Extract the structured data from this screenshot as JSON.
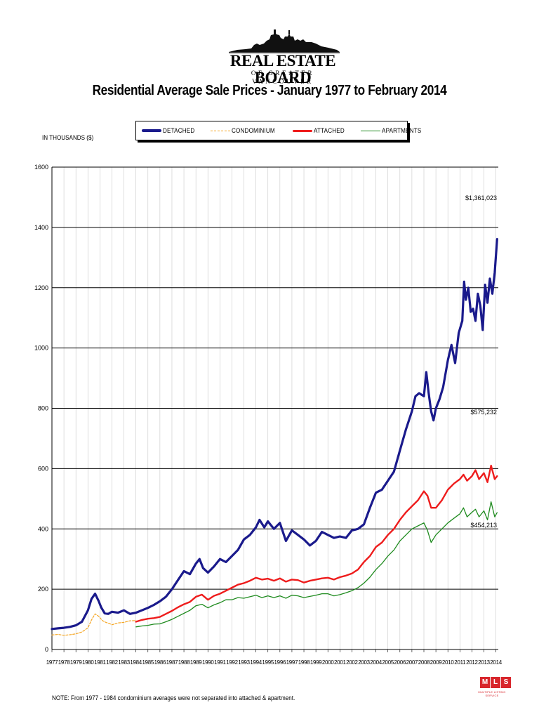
{
  "header": {
    "org_name": "REAL ESTATE BOARD",
    "org_sub": "OF GREATER VANCOUVER",
    "title": "Residential Average Sale Prices  - January 1977 to February 2014",
    "y_unit": "IN THOUSANDS ($)"
  },
  "legend": [
    {
      "label": "DETACHED",
      "color": "#1a1a8c",
      "style": "solid-thick"
    },
    {
      "label": "CONDOMINIUM",
      "color": "#f5a623",
      "style": "dotted"
    },
    {
      "label": "ATTACHED",
      "color": "#ee1c1c",
      "style": "solid"
    },
    {
      "label": "APARTMENTS",
      "color": "#1f8b1f",
      "style": "solid-thin"
    }
  ],
  "footer": {
    "note": "NOTE:  From 1977 - 1984 condominium averages were not separated into attached & apartment.",
    "mls_letters": [
      "M",
      "L",
      "S"
    ],
    "mls_sub": "MULTIPLE LISTING SERVICE"
  },
  "chart_data": {
    "type": "line",
    "title": "Residential Average Sale Prices  - January 1977 to February 2014",
    "ylabel": "IN THOUSANDS ($)",
    "xlabel": "",
    "ylim": [
      0,
      1600
    ],
    "yticks": [
      0,
      200,
      400,
      600,
      800,
      1000,
      1200,
      1400,
      1600
    ],
    "xlim": [
      1977.0,
      2014.2
    ],
    "xticks": [
      "1977",
      "1978",
      "1979",
      "1980",
      "1981",
      "1982",
      "1983",
      "1984",
      "1985",
      "1986",
      "1987",
      "1988",
      "1989",
      "1990",
      "1991",
      "1992",
      "1993",
      "1994",
      "1995",
      "1996",
      "1997",
      "1998",
      "1999",
      "2000",
      "2001",
      "2002",
      "2003",
      "2004",
      "2005",
      "2006",
      "2007",
      "2008",
      "2009",
      "2010",
      "2011",
      "2012",
      "2013",
      "2014"
    ],
    "grid": "horizontal-major-and-vertical-minor",
    "annotations": [
      {
        "text": "$1,361,023",
        "x": 2013.8,
        "y": 1490
      },
      {
        "text": "$575,232",
        "x": 2013.8,
        "y": 780
      },
      {
        "text": "$454,213",
        "x": 2013.8,
        "y": 405
      }
    ],
    "series": [
      {
        "name": "DETACHED",
        "color": "#1a1a8c",
        "width": 3.2,
        "x": [
          1977.0,
          1977.5,
          1978.0,
          1978.5,
          1979.0,
          1979.5,
          1980.0,
          1980.3,
          1980.6,
          1980.9,
          1981.1,
          1981.4,
          1981.7,
          1982.0,
          1982.5,
          1983.0,
          1983.5,
          1984.0,
          1984.5,
          1985.0,
          1985.5,
          1986.0,
          1986.5,
          1987.0,
          1987.5,
          1988.0,
          1988.5,
          1989.0,
          1989.3,
          1989.6,
          1990.0,
          1990.5,
          1991.0,
          1991.5,
          1992.0,
          1992.5,
          1993.0,
          1993.5,
          1994.0,
          1994.3,
          1994.7,
          1995.0,
          1995.5,
          1996.0,
          1996.5,
          1997.0,
          1997.5,
          1998.0,
          1998.5,
          1999.0,
          1999.5,
          2000.0,
          2000.5,
          2001.0,
          2001.5,
          2002.0,
          2002.5,
          2003.0,
          2003.5,
          2004.0,
          2004.5,
          2005.0,
          2005.5,
          2006.0,
          2006.5,
          2007.0,
          2007.3,
          2007.6,
          2008.0,
          2008.2,
          2008.4,
          2008.6,
          2008.8,
          2009.0,
          2009.3,
          2009.6,
          2010.0,
          2010.3,
          2010.6,
          2010.9,
          2011.2,
          2011.35,
          2011.5,
          2011.7,
          2011.9,
          2012.1,
          2012.3,
          2012.5,
          2012.7,
          2012.9,
          2013.1,
          2013.3,
          2013.5,
          2013.7,
          2013.9,
          2014.1
        ],
        "y": [
          68,
          70,
          72,
          75,
          80,
          92,
          130,
          168,
          185,
          160,
          140,
          120,
          118,
          125,
          122,
          130,
          118,
          122,
          130,
          138,
          148,
          160,
          175,
          200,
          230,
          260,
          250,
          285,
          300,
          270,
          255,
          275,
          300,
          290,
          310,
          330,
          365,
          380,
          405,
          430,
          405,
          425,
          400,
          420,
          360,
          395,
          380,
          365,
          345,
          360,
          390,
          380,
          370,
          375,
          370,
          395,
          400,
          415,
          470,
          520,
          530,
          560,
          590,
          660,
          730,
          790,
          840,
          850,
          840,
          920,
          850,
          790,
          760,
          800,
          830,
          870,
          960,
          1010,
          950,
          1050,
          1090,
          1220,
          1160,
          1200,
          1120,
          1130,
          1090,
          1180,
          1140,
          1060,
          1210,
          1150,
          1230,
          1180,
          1250,
          1361
        ]
      },
      {
        "name": "CONDOMINIUM",
        "color": "#f5a623",
        "width": 1.2,
        "dash": "3,2",
        "x": [
          1977.0,
          1977.5,
          1978.0,
          1978.5,
          1979.0,
          1979.5,
          1980.0,
          1980.3,
          1980.6,
          1980.9,
          1981.2,
          1981.5,
          1981.8,
          1982.0,
          1982.5,
          1983.0,
          1983.5,
          1984.0
        ],
        "y": [
          48,
          50,
          47,
          49,
          52,
          58,
          72,
          98,
          118,
          110,
          96,
          90,
          86,
          82,
          88,
          90,
          95,
          96
        ]
      },
      {
        "name": "ATTACHED",
        "color": "#ee1c1c",
        "width": 2.4,
        "x": [
          1984.0,
          1984.5,
          1985.0,
          1985.5,
          1986.0,
          1986.5,
          1987.0,
          1987.5,
          1988.0,
          1988.5,
          1989.0,
          1989.5,
          1990.0,
          1990.5,
          1991.0,
          1991.5,
          1992.0,
          1992.5,
          1993.0,
          1993.5,
          1994.0,
          1994.5,
          1995.0,
          1995.5,
          1996.0,
          1996.5,
          1997.0,
          1997.5,
          1998.0,
          1998.5,
          1999.0,
          1999.5,
          2000.0,
          2000.5,
          2001.0,
          2001.5,
          2002.0,
          2002.5,
          2003.0,
          2003.5,
          2004.0,
          2004.5,
          2005.0,
          2005.5,
          2006.0,
          2006.5,
          2007.0,
          2007.5,
          2008.0,
          2008.3,
          2008.6,
          2009.0,
          2009.5,
          2010.0,
          2010.5,
          2011.0,
          2011.3,
          2011.6,
          2012.0,
          2012.3,
          2012.6,
          2013.0,
          2013.3,
          2013.6,
          2013.9,
          2014.1
        ],
        "y": [
          92,
          98,
          102,
          104,
          108,
          118,
          128,
          140,
          150,
          158,
          175,
          182,
          165,
          178,
          185,
          195,
          205,
          215,
          220,
          228,
          238,
          232,
          235,
          228,
          236,
          225,
          232,
          230,
          222,
          228,
          232,
          236,
          238,
          232,
          240,
          245,
          252,
          265,
          290,
          310,
          340,
          355,
          380,
          400,
          430,
          455,
          475,
          495,
          525,
          510,
          470,
          470,
          495,
          530,
          550,
          565,
          580,
          560,
          575,
          595,
          565,
          585,
          555,
          610,
          565,
          575
        ]
      },
      {
        "name": "APARTMENTS",
        "color": "#1f8b1f",
        "width": 1.3,
        "x": [
          1984.0,
          1984.5,
          1985.0,
          1985.5,
          1986.0,
          1986.5,
          1987.0,
          1987.5,
          1988.0,
          1988.5,
          1989.0,
          1989.5,
          1990.0,
          1990.5,
          1991.0,
          1991.5,
          1992.0,
          1992.5,
          1993.0,
          1993.5,
          1994.0,
          1994.5,
          1995.0,
          1995.5,
          1996.0,
          1996.5,
          1997.0,
          1997.5,
          1998.0,
          1998.5,
          1999.0,
          1999.5,
          2000.0,
          2000.5,
          2001.0,
          2001.5,
          2002.0,
          2002.5,
          2003.0,
          2003.5,
          2004.0,
          2004.5,
          2005.0,
          2005.5,
          2006.0,
          2006.5,
          2007.0,
          2007.5,
          2008.0,
          2008.3,
          2008.6,
          2009.0,
          2009.5,
          2010.0,
          2010.5,
          2011.0,
          2011.3,
          2011.6,
          2012.0,
          2012.3,
          2012.6,
          2013.0,
          2013.3,
          2013.6,
          2013.9,
          2014.1
        ],
        "y": [
          75,
          78,
          80,
          84,
          85,
          92,
          100,
          110,
          120,
          130,
          145,
          150,
          138,
          148,
          155,
          165,
          165,
          172,
          170,
          175,
          180,
          172,
          178,
          172,
          178,
          170,
          180,
          178,
          172,
          176,
          180,
          185,
          185,
          178,
          182,
          188,
          195,
          205,
          220,
          240,
          265,
          285,
          310,
          330,
          360,
          380,
          400,
          410,
          420,
          395,
          355,
          380,
          400,
          420,
          435,
          450,
          470,
          440,
          455,
          465,
          440,
          460,
          430,
          490,
          440,
          454
        ]
      }
    ]
  }
}
